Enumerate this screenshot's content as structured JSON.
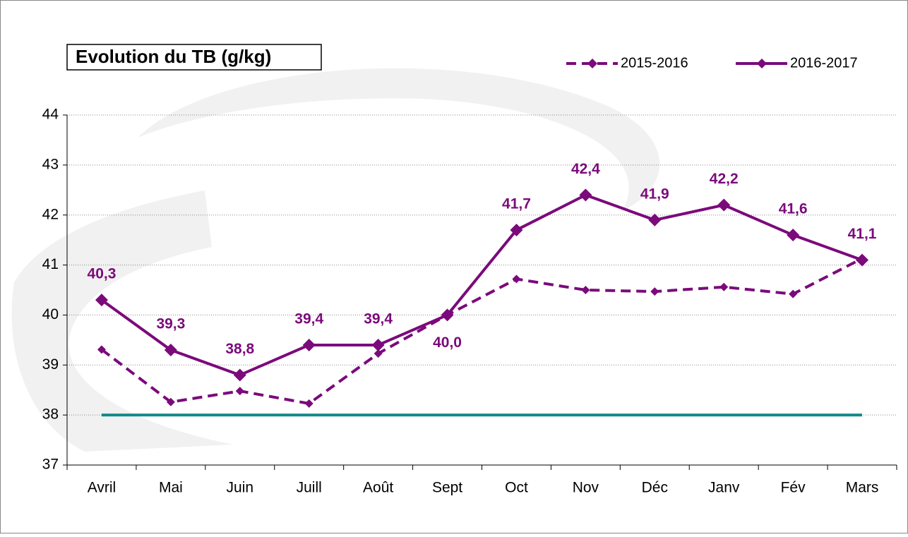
{
  "chart_data": {
    "type": "line",
    "title": "Evolution du TB (g/kg)",
    "categories": [
      "Avril",
      "Mai",
      "Juin",
      "Juill",
      "Août",
      "Sept",
      "Oct",
      "Nov",
      "Déc",
      "Janv",
      "Fév",
      "Mars"
    ],
    "series": [
      {
        "name": "2015-2016",
        "color": "#7b0a7b",
        "dashed": true,
        "values": [
          39.31,
          38.26,
          38.48,
          38.23,
          39.23,
          40.0,
          40.72,
          40.5,
          40.47,
          40.56,
          40.42,
          41.13
        ]
      },
      {
        "name": "2016-2017",
        "color": "#7b0a7b",
        "dashed": false,
        "values": [
          40.3,
          39.3,
          38.8,
          39.4,
          39.4,
          40.0,
          41.7,
          42.4,
          41.9,
          42.2,
          41.6,
          41.1
        ],
        "value_labels": [
          "40,3",
          "39,3",
          "38,8",
          "39,4",
          "39,4",
          "40,0",
          "41,7",
          "42,4",
          "41,9",
          "42,2",
          "41,6",
          "41,1"
        ]
      }
    ],
    "threshold": {
      "value": 38,
      "color": "#138a8a"
    },
    "ylim": [
      37,
      44
    ],
    "yticks": [
      37,
      38,
      39,
      40,
      41,
      42,
      43,
      44
    ],
    "grid": true
  }
}
